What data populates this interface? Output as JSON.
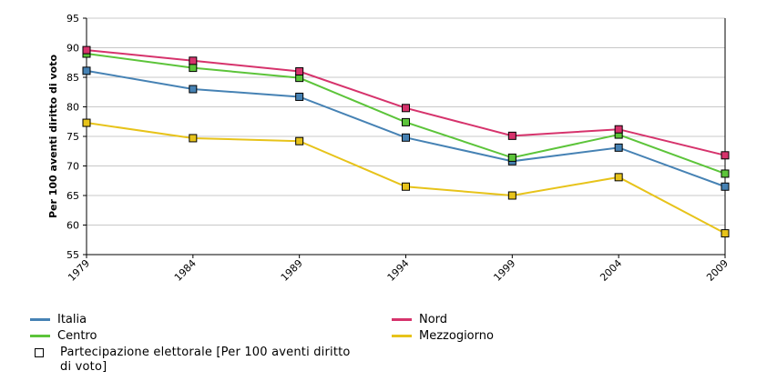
{
  "chart_data": {
    "type": "line",
    "ylabel": "Per 100 aventi diritto di voto",
    "xlabel": "",
    "ylim": [
      55,
      95
    ],
    "yticks": [
      55,
      60,
      65,
      70,
      75,
      80,
      85,
      90,
      95
    ],
    "categories": [
      "1979",
      "1984",
      "1989",
      "1994",
      "1999",
      "2004",
      "2009"
    ],
    "grid": true,
    "legend_position": "bottom",
    "series": [
      {
        "name": "Italia",
        "color": "#4682b4",
        "values": [
          86.1,
          83.0,
          81.7,
          74.8,
          70.8,
          73.1,
          66.5
        ]
      },
      {
        "name": "Centro",
        "color": "#5cc43a",
        "values": [
          89.0,
          86.6,
          84.9,
          77.4,
          71.4,
          75.3,
          68.7
        ]
      },
      {
        "name": "Nord",
        "color": "#d6336c",
        "values": [
          89.6,
          87.8,
          86.0,
          79.8,
          75.1,
          76.2,
          71.8
        ]
      },
      {
        "name": "Mezzogiorno",
        "color": "#e7c31a",
        "values": [
          77.3,
          74.7,
          74.2,
          66.5,
          65.0,
          68.1,
          58.6
        ]
      }
    ],
    "marker_legend": "Partecipazione elettorale [Per 100 aventi diritto di voto]"
  }
}
